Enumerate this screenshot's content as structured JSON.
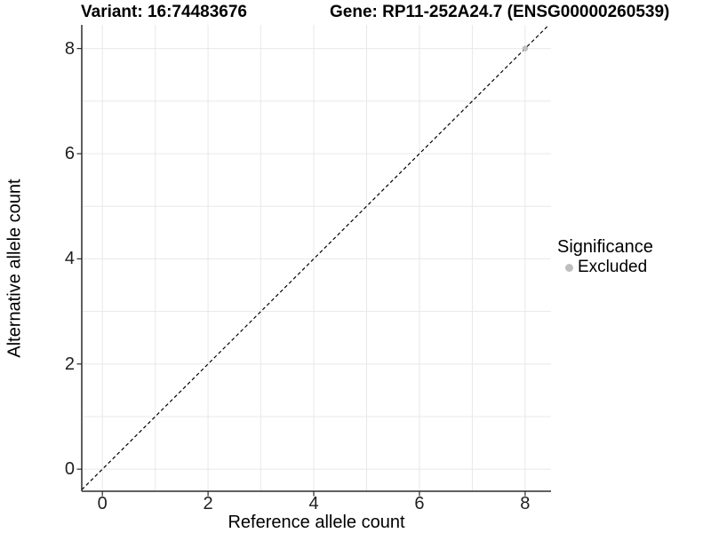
{
  "chart_data": {
    "type": "scatter",
    "titles": [
      "Variant: 16:74483676",
      "Gene: RP11-252A24.7 (ENSG00000260539)"
    ],
    "xlabel": "Reference allele count",
    "ylabel": "Alternative allele count",
    "x_ticks": [
      0,
      2,
      4,
      6,
      8
    ],
    "y_ticks": [
      0,
      2,
      4,
      6,
      8
    ],
    "xlim": [
      -0.39,
      8.49
    ],
    "ylim": [
      -0.42,
      8.45
    ],
    "grid": {
      "x": [
        0,
        1,
        2,
        3,
        4,
        5,
        6,
        7,
        8
      ],
      "y": [
        0,
        1,
        2,
        3,
        4,
        5,
        6,
        7,
        8
      ],
      "color": "#e8e8e8"
    },
    "identity_line": {
      "equation": "y = x",
      "style": "dashed",
      "color": "#000000"
    },
    "series": [
      {
        "name": "Excluded",
        "color": "#bebebe",
        "points": [
          {
            "x": 8,
            "y": 8
          }
        ]
      }
    ],
    "legend": {
      "title": "Significance",
      "position": "right",
      "items": [
        {
          "label": "Excluded",
          "color": "#bebebe"
        }
      ]
    },
    "axis_color": "#2b2b2b",
    "tick_label_color": "#1f1f1f"
  }
}
